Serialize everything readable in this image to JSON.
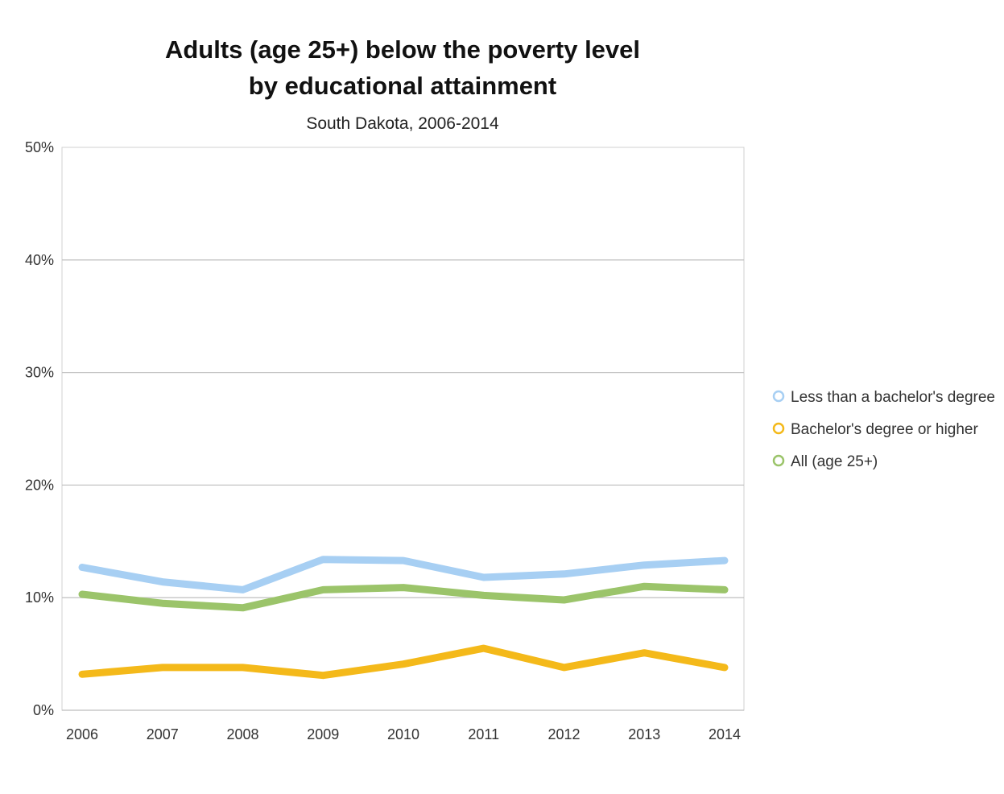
{
  "chart_data": {
    "type": "line",
    "title": [
      "Adults (age 25+) below the poverty level",
      "by educational attainment"
    ],
    "subtitle": "South Dakota, 2006-2014",
    "categories": [
      "2006",
      "2007",
      "2008",
      "2009",
      "2010",
      "2011",
      "2012",
      "2013",
      "2014"
    ],
    "ylim": [
      0,
      50
    ],
    "yticks": [
      0,
      10,
      20,
      30,
      40,
      50
    ],
    "ytick_labels": [
      "0%",
      "10%",
      "20%",
      "30%",
      "40%",
      "50%"
    ],
    "grid": true,
    "legend_position": "right",
    "series": [
      {
        "name": "Less than a bachelor's degree",
        "color": "#a7cff3",
        "values": [
          12.7,
          11.4,
          10.7,
          13.4,
          13.3,
          11.8,
          12.1,
          12.9,
          13.3
        ]
      },
      {
        "name": "Bachelor's degree or higher",
        "color": "#f4b91a",
        "values": [
          3.2,
          3.8,
          3.8,
          3.1,
          4.1,
          5.5,
          3.8,
          5.1,
          3.8
        ]
      },
      {
        "name": "All (age 25+)",
        "color": "#9bc46a",
        "values": [
          10.3,
          9.5,
          9.1,
          10.7,
          10.9,
          10.2,
          9.8,
          11.0,
          10.7
        ]
      }
    ]
  }
}
